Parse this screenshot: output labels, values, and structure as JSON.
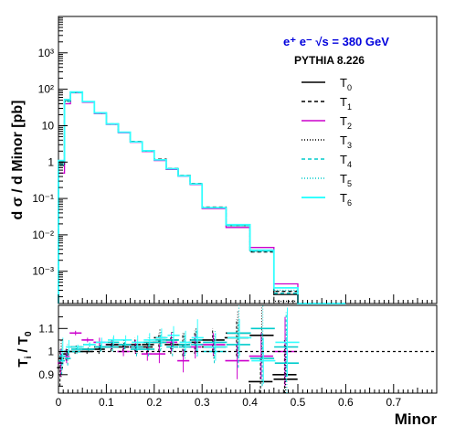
{
  "chart_data": [
    {
      "type": "line",
      "panel": "main",
      "ylabel": "d σ / d Minor [pb]",
      "yscale": "log",
      "ylim": [
        0.00013,
        10000
      ],
      "xlim": [
        0,
        0.79
      ],
      "title_line1": "e⁺ e⁻ √s = 380 GeV",
      "title_line2": "PYTHIA 8.226",
      "y_tick_labels": [
        "10³",
        "10²",
        "10",
        "1",
        "10⁻¹",
        "10⁻²",
        "10⁻³"
      ],
      "y_tick_values": [
        1000,
        100,
        10,
        1,
        0.1,
        0.01,
        0.001
      ],
      "bin_edges": [
        0,
        0.0125,
        0.025,
        0.05,
        0.075,
        0.1,
        0.125,
        0.15,
        0.175,
        0.2,
        0.225,
        0.25,
        0.275,
        0.3,
        0.35,
        0.4,
        0.45,
        0.5,
        0.6
      ],
      "series": [
        {
          "name": "T",
          "sub": "0",
          "color": "#000000",
          "dash": "",
          "values": [
            1.0,
            50,
            82,
            45,
            22,
            11,
            6.5,
            3.6,
            2.0,
            1.15,
            0.65,
            0.42,
            0.25,
            0.055,
            0.018,
            0.0037,
            0.00023,
            0
          ]
        },
        {
          "name": "T",
          "sub": "1",
          "color": "#000000",
          "dash": "4,3",
          "values": [
            0.9,
            48,
            82,
            45,
            22.5,
            11.2,
            6.6,
            3.7,
            2.05,
            1.2,
            0.67,
            0.43,
            0.26,
            0.058,
            0.019,
            0.0034,
            0.00028,
            0
          ]
        },
        {
          "name": "T",
          "sub": "2",
          "color": "#cc00cc",
          "dash": "",
          "values": [
            0.5,
            40,
            80,
            44,
            21.5,
            10.8,
            6.4,
            3.5,
            1.95,
            1.1,
            0.63,
            0.41,
            0.24,
            0.053,
            0.016,
            0.0045,
            0.00045,
            0
          ]
        },
        {
          "name": "T",
          "sub": "3",
          "color": "#000000",
          "dash": "1,2",
          "values": [
            0.8,
            46,
            81,
            45,
            22,
            11,
            6.5,
            3.6,
            2.0,
            1.15,
            0.66,
            0.42,
            0.25,
            0.056,
            0.019,
            0.0038,
            0.00015,
            0
          ]
        },
        {
          "name": "T",
          "sub": "4",
          "color": "#00cccc",
          "dash": "4,3",
          "values": [
            0.85,
            47,
            81,
            45,
            22,
            11,
            6.5,
            3.6,
            2.0,
            1.15,
            0.65,
            0.42,
            0.25,
            0.055,
            0.018,
            0.0036,
            0.00025,
            0
          ]
        },
        {
          "name": "T",
          "sub": "5",
          "color": "#00cccc",
          "dash": "1,2",
          "values": [
            0.95,
            50,
            83,
            45,
            22.2,
            11.1,
            6.5,
            3.6,
            2.0,
            1.15,
            0.65,
            0.42,
            0.25,
            0.055,
            0.018,
            0.0035,
            0.0003,
            0
          ]
        },
        {
          "name": "T",
          "sub": "6",
          "color": "#33ffff",
          "dash": "",
          "values": [
            1.1,
            52,
            84,
            46,
            22.5,
            11.2,
            6.6,
            3.6,
            2.05,
            1.15,
            0.66,
            0.42,
            0.25,
            0.056,
            0.019,
            0.0038,
            0.00035,
            0
          ]
        }
      ]
    },
    {
      "type": "scatter",
      "panel": "ratio",
      "ylabel": "T",
      "ylabel_sub": "i",
      "ylabel_den": "T",
      "ylabel_den_sub": "0",
      "ylim": [
        0.82,
        1.2
      ],
      "y_tick_labels": [
        "1.1",
        "1",
        "0.9"
      ],
      "y_tick_values": [
        1.1,
        1.0,
        0.9
      ],
      "reference_line": 1.0,
      "xlabel": "Minor",
      "x_tick_labels": [
        "0",
        "0.1",
        "0.2",
        "0.3",
        "0.4",
        "0.5",
        "0.6",
        "0.7"
      ],
      "x_tick_values": [
        0,
        0.1,
        0.2,
        0.3,
        0.4,
        0.5,
        0.6,
        0.7
      ],
      "bin_centers": [
        0.00625,
        0.01875,
        0.0375,
        0.0625,
        0.0875,
        0.1125,
        0.1375,
        0.1625,
        0.1875,
        0.2125,
        0.2375,
        0.2625,
        0.2875,
        0.325,
        0.375,
        0.425,
        0.475
      ],
      "bin_half_widths": [
        0.00625,
        0.00625,
        0.0125,
        0.0125,
        0.0125,
        0.0125,
        0.0125,
        0.0125,
        0.0125,
        0.0125,
        0.0125,
        0.0125,
        0.0125,
        0.025,
        0.025,
        0.025,
        0.025
      ],
      "series": [
        {
          "sub": "1",
          "color": "#000000",
          "values": [
            0.93,
            0.99,
            1.0,
            1.0,
            1.01,
            1.02,
            1.02,
            1.03,
            1.02,
            1.04,
            1.03,
            1.03,
            1.04,
            1.05,
            1.06,
            0.87,
            0.9
          ],
          "errors": [
            0.08,
            0.03,
            0.01,
            0.01,
            0.02,
            0.02,
            0.02,
            0.03,
            0.03,
            0.04,
            0.04,
            0.05,
            0.05,
            0.05,
            0.08,
            0.1,
            0.15
          ]
        },
        {
          "sub": "2",
          "color": "#cc00cc",
          "values": [
            0.95,
            0.98,
            1.08,
            1.05,
            1.04,
            1.03,
            1.0,
            1.02,
            0.99,
            0.99,
            1.04,
            0.96,
            1.02,
            1.03,
            0.96,
            0.98,
            1.0
          ],
          "errors": [
            0.06,
            0.03,
            0.01,
            0.01,
            0.02,
            0.02,
            0.02,
            0.03,
            0.03,
            0.04,
            0.04,
            0.05,
            0.05,
            0.05,
            0.08,
            0.1,
            0.15
          ]
        },
        {
          "sub": "3",
          "color": "#000000",
          "values": [
            0.97,
            1.0,
            1.02,
            1.01,
            1.02,
            1.03,
            1.03,
            1.02,
            1.03,
            1.06,
            1.05,
            1.03,
            1.05,
            1.02,
            1.08,
            1.07,
            0.88
          ],
          "errors": [
            0.08,
            0.03,
            0.01,
            0.01,
            0.02,
            0.02,
            0.02,
            0.03,
            0.03,
            0.04,
            0.04,
            0.05,
            0.05,
            0.05,
            0.1,
            0.12,
            0.15
          ]
        },
        {
          "sub": "4",
          "color": "#00cccc",
          "values": [
            0.96,
            0.97,
            1.0,
            1.01,
            1.02,
            1.02,
            1.03,
            1.01,
            1.01,
            1.04,
            1.02,
            1.03,
            1.05,
            1.0,
            1.03,
            0.97,
            1.02
          ],
          "errors": [
            0.06,
            0.03,
            0.01,
            0.01,
            0.02,
            0.02,
            0.02,
            0.03,
            0.03,
            0.04,
            0.04,
            0.05,
            0.05,
            0.05,
            0.1,
            0.12,
            0.15
          ]
        },
        {
          "sub": "5",
          "color": "#00cccc",
          "values": [
            0.98,
            1.0,
            1.01,
            1.03,
            1.02,
            1.04,
            1.03,
            1.02,
            1.04,
            1.05,
            1.05,
            1.02,
            1.03,
            1.04,
            1.08,
            1.1,
            0.95
          ],
          "errors": [
            0.06,
            0.03,
            0.01,
            0.01,
            0.02,
            0.02,
            0.02,
            0.03,
            0.03,
            0.04,
            0.04,
            0.05,
            0.05,
            0.05,
            0.12,
            0.12,
            0.15
          ]
        },
        {
          "sub": "6",
          "color": "#33ffff",
          "values": [
            1.0,
            1.02,
            1.02,
            1.03,
            1.04,
            1.05,
            1.05,
            1.04,
            1.05,
            1.06,
            1.07,
            1.04,
            1.06,
            1.02,
            1.06,
            0.96,
            1.04
          ],
          "errors": [
            0.06,
            0.03,
            0.01,
            0.01,
            0.02,
            0.02,
            0.02,
            0.03,
            0.03,
            0.04,
            0.04,
            0.05,
            0.08,
            0.06,
            0.08,
            0.1,
            0.15
          ]
        }
      ]
    }
  ]
}
